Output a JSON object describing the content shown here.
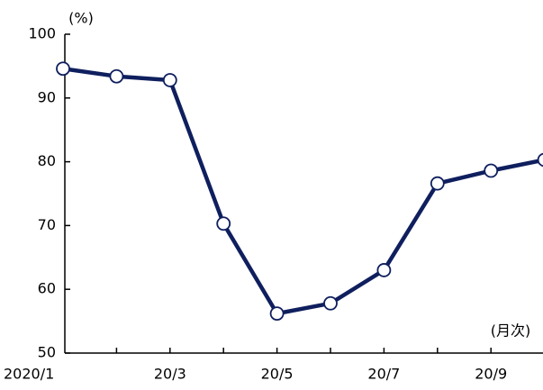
{
  "chart_data": {
    "type": "line",
    "y_unit": "(%)",
    "x_unit": "(月次)",
    "categories": [
      "2020/1",
      null,
      "20/3",
      null,
      "20/5",
      null,
      "20/7",
      null,
      "20/9",
      null
    ],
    "series": [
      {
        "name": null,
        "color": "#0f1f5e",
        "values": [
          94.6,
          93.4,
          92.8,
          70.3,
          56.2,
          57.8,
          63.0,
          76.6,
          78.6,
          80.3
        ]
      }
    ],
    "ylim": [
      50,
      100
    ],
    "yticks": [
      50,
      60,
      70,
      80,
      90,
      100
    ],
    "grid": false
  }
}
